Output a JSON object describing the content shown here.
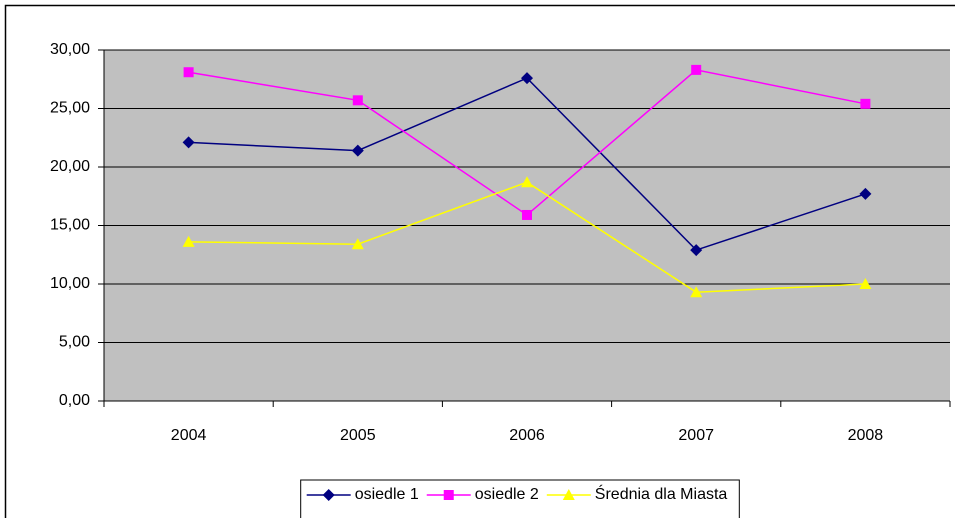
{
  "chart_data": {
    "type": "line",
    "categories": [
      "2004",
      "2005",
      "2006",
      "2007",
      "2008"
    ],
    "series": [
      {
        "name": "osiedle 1",
        "color": "#000080",
        "marker": "diamond",
        "values": [
          22.1,
          21.4,
          27.6,
          12.9,
          17.7
        ]
      },
      {
        "name": "osiedle 2",
        "color": "#FF00FF",
        "marker": "square",
        "values": [
          28.1,
          25.7,
          15.9,
          28.3,
          25.4
        ]
      },
      {
        "name": "Średnia dla Miasta",
        "color": "#FFFF00",
        "marker": "triangle",
        "values": [
          13.6,
          13.4,
          18.7,
          9.3,
          10.0
        ]
      }
    ],
    "ylim": [
      0,
      30
    ],
    "yticks": [
      {
        "value": 0,
        "label": "0,00"
      },
      {
        "value": 5,
        "label": "5,00"
      },
      {
        "value": 10,
        "label": "10,00"
      },
      {
        "value": 15,
        "label": "15,00"
      },
      {
        "value": 20,
        "label": "20,00"
      },
      {
        "value": 25,
        "label": "25,00"
      },
      {
        "value": 30,
        "label": "30,00"
      }
    ],
    "grid": true,
    "plot_background": "#C0C0C0",
    "legend": "bottom"
  }
}
